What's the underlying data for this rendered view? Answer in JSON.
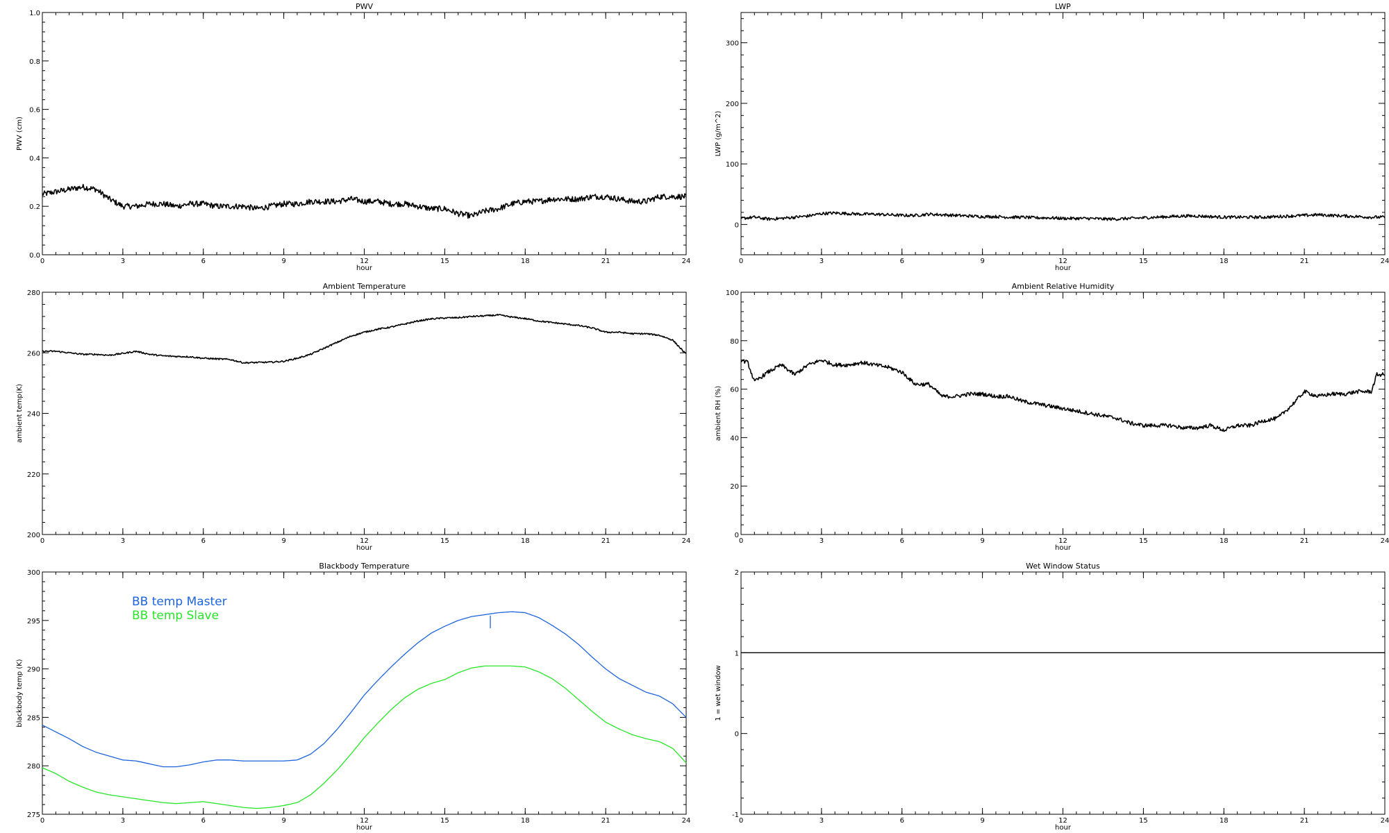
{
  "chart_data": [
    {
      "type": "line",
      "title": "PWV",
      "xlabel": "hour",
      "ylabel": "PWV (cm)",
      "xlim": [
        0,
        24
      ],
      "ylim": [
        0.0,
        1.0
      ],
      "xticks": [
        0,
        3,
        6,
        9,
        12,
        15,
        18,
        21,
        24
      ],
      "yticks": [
        "0.0",
        "0.2",
        "0.4",
        "0.6",
        "0.8",
        "1.0"
      ],
      "grid": false,
      "noise": 0.012,
      "series": [
        {
          "color": "#000000",
          "x": [
            0,
            0.5,
            1,
            1.5,
            2,
            2.5,
            3,
            3.5,
            4,
            4.5,
            5,
            5.5,
            6,
            6.5,
            7,
            7.5,
            8,
            8.5,
            9,
            9.5,
            10,
            10.5,
            11,
            11.5,
            12,
            12.5,
            13,
            13.5,
            14,
            14.5,
            15,
            15.5,
            16,
            16.5,
            17,
            17.5,
            18,
            18.5,
            19,
            19.5,
            20,
            20.5,
            21,
            21.5,
            22,
            22.5,
            23,
            23.5,
            24
          ],
          "y": [
            0.25,
            0.26,
            0.27,
            0.28,
            0.27,
            0.23,
            0.2,
            0.2,
            0.21,
            0.21,
            0.2,
            0.21,
            0.21,
            0.2,
            0.2,
            0.2,
            0.19,
            0.2,
            0.21,
            0.21,
            0.22,
            0.22,
            0.22,
            0.23,
            0.22,
            0.22,
            0.21,
            0.21,
            0.2,
            0.19,
            0.19,
            0.17,
            0.16,
            0.18,
            0.19,
            0.21,
            0.22,
            0.22,
            0.23,
            0.23,
            0.23,
            0.24,
            0.24,
            0.23,
            0.22,
            0.22,
            0.24,
            0.24,
            0.24
          ]
        }
      ]
    },
    {
      "type": "line",
      "title": "LWP",
      "xlabel": "hour",
      "ylabel": "LWP (g/m^2)",
      "xlim": [
        0,
        24
      ],
      "ylim": [
        -50,
        350
      ],
      "xticks": [
        0,
        3,
        6,
        9,
        12,
        15,
        18,
        21,
        24
      ],
      "yticks": [
        "0",
        "100",
        "200",
        "300"
      ],
      "ytickvals": [
        0,
        100,
        200,
        300
      ],
      "grid": false,
      "noise": 2.5,
      "series": [
        {
          "color": "#000000",
          "x": [
            0,
            0.5,
            1,
            1.5,
            2,
            2.5,
            3,
            3.5,
            4,
            4.5,
            5,
            5.5,
            6,
            6.5,
            7,
            7.5,
            8,
            8.5,
            9,
            9.5,
            10,
            10.5,
            11,
            11.5,
            12,
            12.5,
            13,
            13.5,
            14,
            14.5,
            15,
            15.5,
            16,
            16.5,
            17,
            17.5,
            18,
            18.5,
            19,
            19.5,
            20,
            20.5,
            21,
            21.5,
            22,
            22.5,
            23,
            23.5,
            24
          ],
          "y": [
            10,
            12,
            9,
            10,
            12,
            14,
            18,
            19,
            18,
            17,
            17,
            16,
            15,
            15,
            17,
            16,
            15,
            14,
            13,
            13,
            12,
            12,
            11,
            11,
            10,
            10,
            10,
            9,
            9,
            10,
            11,
            12,
            13,
            14,
            14,
            13,
            12,
            12,
            12,
            12,
            13,
            14,
            15,
            16,
            15,
            14,
            13,
            12,
            12
          ]
        }
      ]
    },
    {
      "type": "line",
      "title": "Ambient Temperature",
      "xlabel": "hour",
      "ylabel": "ambient temp(K)",
      "xlim": [
        0,
        24
      ],
      "ylim": [
        200,
        280
      ],
      "xticks": [
        0,
        3,
        6,
        9,
        12,
        15,
        18,
        21,
        24
      ],
      "yticks": [
        "200",
        "220",
        "240",
        "260",
        "280"
      ],
      "ytickvals": [
        200,
        220,
        240,
        260,
        280
      ],
      "grid": false,
      "noise": 0.25,
      "series": [
        {
          "color": "#000000",
          "x": [
            0,
            0.5,
            1,
            1.5,
            2,
            2.5,
            3,
            3.5,
            4,
            4.5,
            5,
            5.5,
            6,
            6.5,
            7,
            7.5,
            8,
            8.5,
            9,
            9.5,
            10,
            10.5,
            11,
            11.5,
            12,
            12.5,
            13,
            13.5,
            14,
            14.5,
            15,
            15.5,
            16,
            16.5,
            17,
            17.5,
            18,
            18.5,
            19,
            19.5,
            20,
            20.5,
            21,
            21.5,
            22,
            22.5,
            23,
            23.5,
            24
          ],
          "y": [
            260.5,
            260.5,
            260,
            259.5,
            259.5,
            259.2,
            259.8,
            260.5,
            259.5,
            259,
            258.8,
            258.7,
            258.2,
            258,
            257.8,
            256.7,
            256.8,
            256.9,
            257.2,
            258.2,
            259.5,
            261.5,
            263.5,
            265.5,
            266.8,
            267.8,
            268.5,
            269.5,
            270.5,
            271.2,
            271.5,
            271.6,
            272,
            272.2,
            272.5,
            271.8,
            271.3,
            270.5,
            270,
            269.5,
            269,
            268.2,
            266.8,
            266.8,
            266.3,
            266.3,
            265.8,
            264.2,
            259.5
          ]
        }
      ]
    },
    {
      "type": "line",
      "title": "Ambient Relative Humidity",
      "xlabel": "hour",
      "ylabel": "ambient RH (%)",
      "xlim": [
        0,
        24
      ],
      "ylim": [
        0,
        100
      ],
      "xticks": [
        0,
        3,
        6,
        9,
        12,
        15,
        18,
        21,
        24
      ],
      "yticks": [
        "0",
        "20",
        "40",
        "60",
        "80",
        "100"
      ],
      "ytickvals": [
        0,
        20,
        40,
        60,
        80,
        100
      ],
      "grid": false,
      "noise": 0.8,
      "series": [
        {
          "color": "#000000",
          "x": [
            0,
            0.25,
            0.5,
            1,
            1.5,
            2,
            2.5,
            3,
            3.5,
            4,
            4.5,
            5,
            5.5,
            6,
            6.5,
            7,
            7.5,
            8,
            8.5,
            9,
            9.5,
            10,
            10.5,
            11,
            11.5,
            12,
            12.5,
            13,
            13.5,
            14,
            14.5,
            15,
            15.5,
            16,
            16.5,
            17,
            17.5,
            18,
            18.5,
            19,
            19.5,
            20,
            20.5,
            21,
            21.5,
            22,
            22.5,
            23,
            23.5,
            23.7,
            24
          ],
          "y": [
            72,
            71,
            63,
            67,
            70,
            66,
            70,
            72,
            70,
            70,
            71,
            70,
            69,
            67,
            62,
            62,
            57,
            57,
            58,
            58,
            57,
            57,
            55,
            54,
            53,
            52,
            51,
            50,
            49,
            48,
            46,
            45,
            45,
            45,
            44,
            44,
            45,
            43,
            45,
            45,
            47,
            48,
            53,
            59,
            57,
            58,
            58,
            59,
            59,
            66,
            66
          ]
        }
      ]
    },
    {
      "type": "line",
      "title": "Blackbody Temperature",
      "xlabel": "hour",
      "ylabel": "blackbody temp (K)",
      "xlim": [
        0,
        24
      ],
      "ylim": [
        275,
        300
      ],
      "xticks": [
        0,
        3,
        6,
        9,
        12,
        15,
        18,
        21,
        24
      ],
      "yticks": [
        "275",
        "280",
        "285",
        "290",
        "295",
        "300"
      ],
      "ytickvals": [
        275,
        280,
        285,
        290,
        295,
        300
      ],
      "grid": false,
      "legend": "top-left",
      "noise": 0,
      "series": [
        {
          "name": "BB temp Master",
          "color": "#1e64dc",
          "x": [
            0,
            0.5,
            1,
            1.5,
            2,
            2.5,
            3,
            3.5,
            4,
            4.5,
            5,
            5.5,
            6,
            6.5,
            7,
            7.5,
            8,
            8.5,
            9,
            9.5,
            10,
            10.5,
            11,
            11.5,
            12,
            12.5,
            13,
            13.5,
            14,
            14.5,
            15,
            15.5,
            16,
            16.5,
            17,
            17.5,
            18,
            18.5,
            19,
            19.5,
            20,
            20.5,
            21,
            21.5,
            22,
            22.5,
            23,
            23.5,
            24
          ],
          "y": [
            284.2,
            283.5,
            282.8,
            282.0,
            281.4,
            281.0,
            280.6,
            280.5,
            280.2,
            279.9,
            279.9,
            280.1,
            280.4,
            280.6,
            280.6,
            280.5,
            280.5,
            280.5,
            280.5,
            280.6,
            281.2,
            282.3,
            283.8,
            285.5,
            287.3,
            288.8,
            290.2,
            291.5,
            292.7,
            293.7,
            294.4,
            295.0,
            295.4,
            295.6,
            295.8,
            295.9,
            295.8,
            295.3,
            294.5,
            293.6,
            292.5,
            291.2,
            290.0,
            289.0,
            288.3,
            287.6,
            287.2,
            286.4,
            285.0
          ]
        },
        {
          "name": "BB temp Slave",
          "color": "#28e628",
          "x": [
            0,
            0.5,
            1,
            1.5,
            2,
            2.5,
            3,
            3.5,
            4,
            4.5,
            5,
            5.5,
            6,
            6.5,
            7,
            7.5,
            8,
            8.5,
            9,
            9.5,
            10,
            10.5,
            11,
            11.5,
            12,
            12.5,
            13,
            13.5,
            14,
            14.5,
            15,
            15.5,
            16,
            16.5,
            17,
            17.5,
            18,
            18.5,
            19,
            19.5,
            20,
            20.5,
            21,
            21.5,
            22,
            22.5,
            23,
            23.5,
            24
          ],
          "y": [
            279.8,
            279.2,
            278.4,
            277.8,
            277.3,
            277.0,
            276.8,
            276.6,
            276.4,
            276.2,
            276.1,
            276.2,
            276.3,
            276.1,
            275.9,
            275.7,
            275.6,
            275.7,
            275.9,
            276.2,
            277.0,
            278.2,
            279.6,
            281.2,
            282.9,
            284.4,
            285.8,
            287.0,
            287.9,
            288.5,
            288.9,
            289.6,
            290.1,
            290.3,
            290.3,
            290.3,
            290.2,
            289.7,
            289.0,
            288.0,
            286.8,
            285.6,
            284.5,
            283.8,
            283.2,
            282.8,
            282.5,
            281.8,
            280.3
          ]
        }
      ],
      "annotations": [
        {
          "type": "spike",
          "series": "BB temp Master",
          "x": 16.7,
          "y_from": 295.5,
          "y_to": 294.2
        }
      ]
    },
    {
      "type": "line",
      "title": "Wet Window Status",
      "xlabel": "hour",
      "ylabel": "1 = wet window",
      "xlim": [
        0,
        24
      ],
      "ylim": [
        -1,
        2
      ],
      "xticks": [
        0,
        3,
        6,
        9,
        12,
        15,
        18,
        21,
        24
      ],
      "yticks": [
        "-1",
        "0",
        "1",
        "2"
      ],
      "ytickvals": [
        -1,
        0,
        1,
        2
      ],
      "grid": false,
      "noise": 0,
      "series": [
        {
          "color": "#000000",
          "x": [
            0,
            24
          ],
          "y": [
            1,
            1
          ]
        }
      ]
    }
  ]
}
